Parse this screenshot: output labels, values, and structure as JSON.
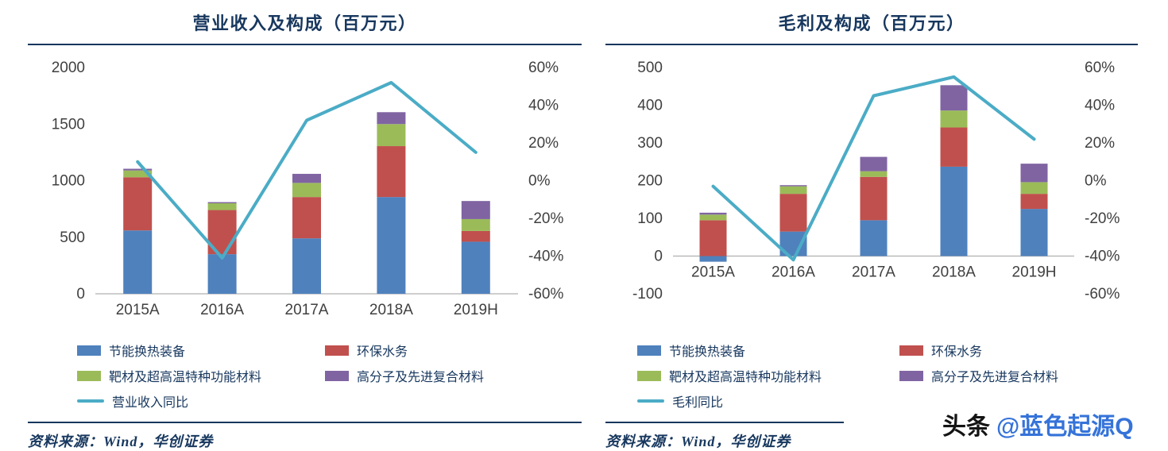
{
  "colors": {
    "blue": "#4F81BD",
    "red": "#C0504D",
    "green": "#9BBB59",
    "purple": "#8064A2",
    "teal": "#4BACC6",
    "navy": "#17375E",
    "axis_text": "#404040",
    "axis_line": "#B0B0B0",
    "watermark_blue": "#3573D9"
  },
  "watermark": {
    "prefix": "头条",
    "handle": "@蓝色起源Q"
  },
  "chart_data": "see charts[]",
  "charts": [
    {
      "type": "bar+line",
      "title": "营业收入及构成（百万元）",
      "source": "资料来源：Wind，华创证券",
      "categories": [
        "2015A",
        "2016A",
        "2017A",
        "2018A",
        "2019H"
      ],
      "y_left": {
        "min": 0,
        "max": 2000,
        "step": 500
      },
      "y_right": {
        "min": -60,
        "max": 60,
        "step": 20,
        "suffix": "%"
      },
      "series": [
        {
          "name": "节能换热装备",
          "color": "blue",
          "values": [
            560,
            350,
            490,
            855,
            460
          ]
        },
        {
          "name": "环保水务",
          "color": "red",
          "values": [
            470,
            390,
            365,
            450,
            95
          ]
        },
        {
          "name": "靶材及超高温特种功能材料",
          "color": "green",
          "values": [
            60,
            60,
            125,
            195,
            105
          ]
        },
        {
          "name": "高分子及先进复合材料",
          "color": "purple",
          "values": [
            15,
            10,
            80,
            105,
            160
          ]
        }
      ],
      "line": {
        "name": "营业收入同比",
        "color": "teal",
        "values": [
          10,
          -41,
          32,
          52,
          15
        ]
      }
    },
    {
      "type": "bar+line",
      "title": "毛利及构成（百万元）",
      "source": "资料来源：Wind，华创证券",
      "categories": [
        "2015A",
        "2016A",
        "2017A",
        "2018A",
        "2019H"
      ],
      "y_left": {
        "min": -100,
        "max": 500,
        "step": 100
      },
      "y_right": {
        "min": -60,
        "max": 60,
        "step": 20,
        "suffix": "%"
      },
      "series": [
        {
          "name": "节能换热装备",
          "color": "blue",
          "values": [
            -15,
            65,
            95,
            237,
            125
          ]
        },
        {
          "name": "环保水务",
          "color": "red",
          "values": [
            95,
            100,
            115,
            104,
            40
          ]
        },
        {
          "name": "靶材及超高温特种功能材料",
          "color": "green",
          "values": [
            15,
            20,
            15,
            45,
            31
          ]
        },
        {
          "name": "高分子及先进复合材料",
          "color": "purple",
          "values": [
            5,
            3,
            38,
            67,
            49
          ]
        }
      ],
      "line": {
        "name": "毛利同比",
        "color": "teal",
        "values": [
          -3,
          -42,
          45,
          55,
          22
        ]
      }
    }
  ]
}
